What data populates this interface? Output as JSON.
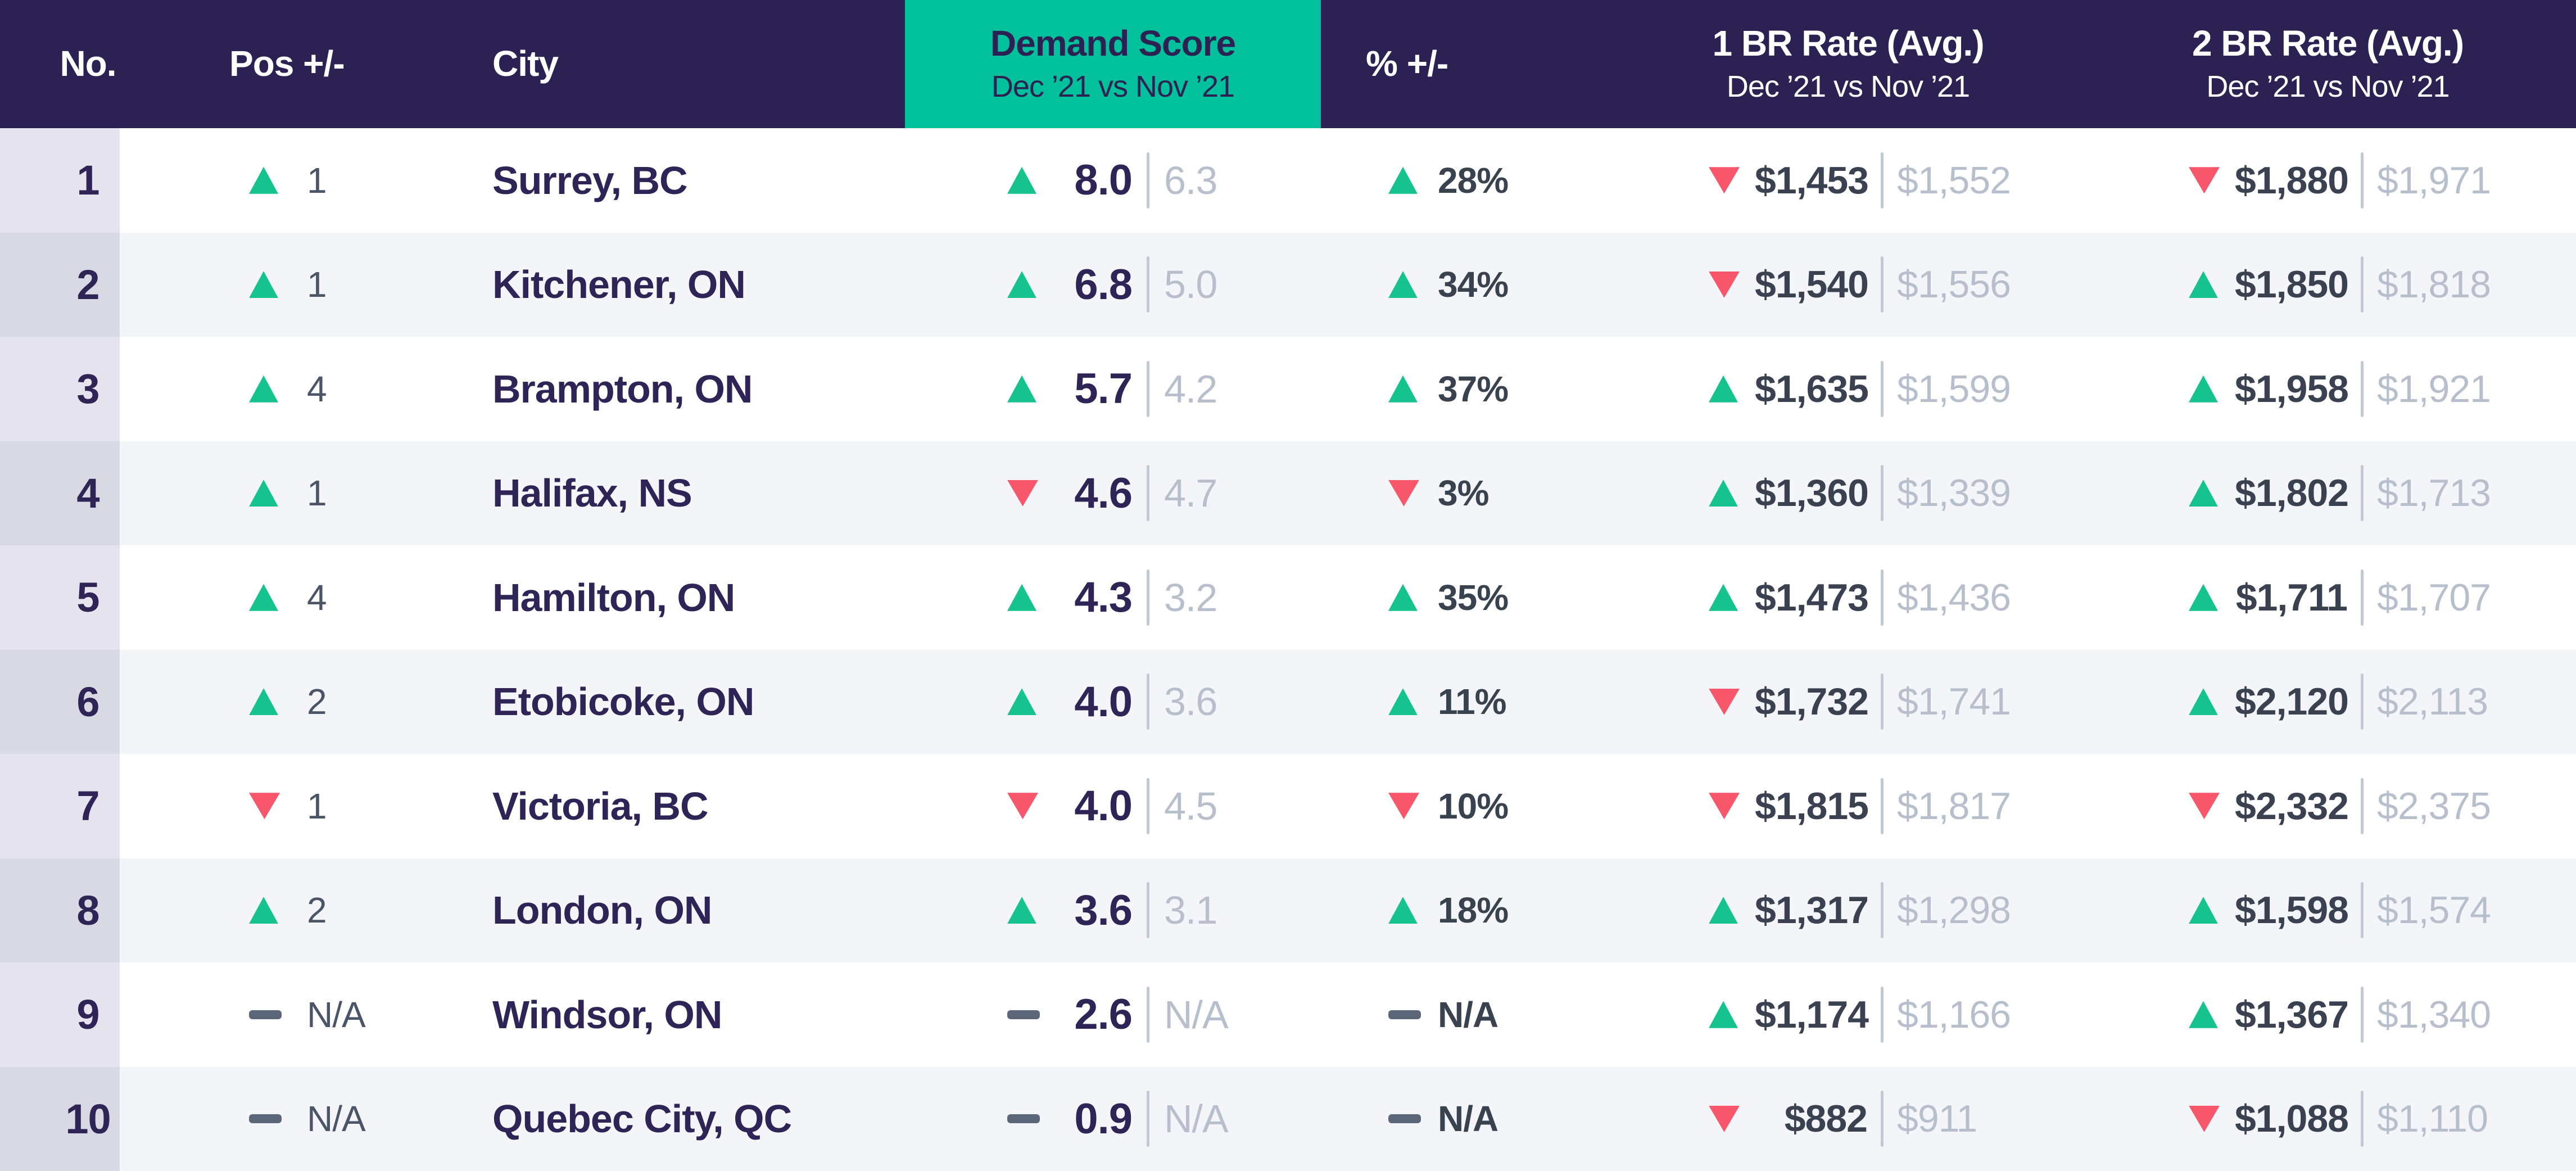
{
  "colors": {
    "header_bg": "#2B2153",
    "accent_teal": "#00C19B",
    "up_green": "#16C28E",
    "down_red": "#F8566B",
    "neutral_dash": "#5B6678",
    "primary_text": "#2F2456",
    "muted_text": "#B7BFCD",
    "row_alt_bg": "#F4F5F9",
    "rank_col_bg_odd": "#E5E4EE",
    "rank_col_bg_even": "#D9D9E4"
  },
  "icons": {
    "up": "up-triangle-icon",
    "down": "down-triangle-icon",
    "na": "dash-icon"
  },
  "chart_data": {
    "type": "table",
    "columns": [
      {
        "key": "no",
        "label": "No."
      },
      {
        "key": "pos",
        "label": "Pos +/-"
      },
      {
        "key": "city",
        "label": "City"
      },
      {
        "key": "demand",
        "label": "Demand Score",
        "sublabel": "Dec ’21 vs Nov ’21"
      },
      {
        "key": "pct",
        "label": "% +/-"
      },
      {
        "key": "br1",
        "label": "1 BR Rate (Avg.)",
        "sublabel": "Dec ’21 vs Nov ’21"
      },
      {
        "key": "br2",
        "label": "2 BR Rate (Avg.)",
        "sublabel": "Dec ’21 vs Nov ’21"
      }
    ],
    "rows": [
      {
        "no": "1",
        "pos": {
          "dir": "up",
          "value": "1"
        },
        "city": "Surrey, BC",
        "demand": {
          "dir": "up",
          "current": "8.0",
          "previous": "6.3"
        },
        "pct": {
          "dir": "up",
          "value": "28%"
        },
        "br1": {
          "dir": "down",
          "current": "$1,453",
          "previous": "$1,552"
        },
        "br2": {
          "dir": "down",
          "current": "$1,880",
          "previous": "$1,971"
        }
      },
      {
        "no": "2",
        "pos": {
          "dir": "up",
          "value": "1"
        },
        "city": "Kitchener, ON",
        "demand": {
          "dir": "up",
          "current": "6.8",
          "previous": "5.0"
        },
        "pct": {
          "dir": "up",
          "value": "34%"
        },
        "br1": {
          "dir": "down",
          "current": "$1,540",
          "previous": "$1,556"
        },
        "br2": {
          "dir": "up",
          "current": "$1,850",
          "previous": "$1,818"
        }
      },
      {
        "no": "3",
        "pos": {
          "dir": "up",
          "value": "4"
        },
        "city": "Brampton, ON",
        "demand": {
          "dir": "up",
          "current": "5.7",
          "previous": "4.2"
        },
        "pct": {
          "dir": "up",
          "value": "37%"
        },
        "br1": {
          "dir": "up",
          "current": "$1,635",
          "previous": "$1,599"
        },
        "br2": {
          "dir": "up",
          "current": "$1,958",
          "previous": "$1,921"
        }
      },
      {
        "no": "4",
        "pos": {
          "dir": "up",
          "value": "1"
        },
        "city": "Halifax, NS",
        "demand": {
          "dir": "down",
          "current": "4.6",
          "previous": "4.7"
        },
        "pct": {
          "dir": "down",
          "value": "3%"
        },
        "br1": {
          "dir": "up",
          "current": "$1,360",
          "previous": "$1,339"
        },
        "br2": {
          "dir": "up",
          "current": "$1,802",
          "previous": "$1,713"
        }
      },
      {
        "no": "5",
        "pos": {
          "dir": "up",
          "value": "4"
        },
        "city": "Hamilton, ON",
        "demand": {
          "dir": "up",
          "current": "4.3",
          "previous": "3.2"
        },
        "pct": {
          "dir": "up",
          "value": "35%"
        },
        "br1": {
          "dir": "up",
          "current": "$1,473",
          "previous": "$1,436"
        },
        "br2": {
          "dir": "up",
          "current": "$1,711",
          "previous": "$1,707"
        }
      },
      {
        "no": "6",
        "pos": {
          "dir": "up",
          "value": "2"
        },
        "city": "Etobicoke, ON",
        "demand": {
          "dir": "up",
          "current": "4.0",
          "previous": "3.6"
        },
        "pct": {
          "dir": "up",
          "value": "11%"
        },
        "br1": {
          "dir": "down",
          "current": "$1,732",
          "previous": "$1,741"
        },
        "br2": {
          "dir": "up",
          "current": "$2,120",
          "previous": "$2,113"
        }
      },
      {
        "no": "7",
        "pos": {
          "dir": "down",
          "value": "1"
        },
        "city": "Victoria, BC",
        "demand": {
          "dir": "down",
          "current": "4.0",
          "previous": "4.5"
        },
        "pct": {
          "dir": "down",
          "value": "10%"
        },
        "br1": {
          "dir": "down",
          "current": "$1,815",
          "previous": "$1,817"
        },
        "br2": {
          "dir": "down",
          "current": "$2,332",
          "previous": "$2,375"
        }
      },
      {
        "no": "8",
        "pos": {
          "dir": "up",
          "value": "2"
        },
        "city": "London, ON",
        "demand": {
          "dir": "up",
          "current": "3.6",
          "previous": "3.1"
        },
        "pct": {
          "dir": "up",
          "value": "18%"
        },
        "br1": {
          "dir": "up",
          "current": "$1,317",
          "previous": "$1,298"
        },
        "br2": {
          "dir": "up",
          "current": "$1,598",
          "previous": "$1,574"
        }
      },
      {
        "no": "9",
        "pos": {
          "dir": "na",
          "value": "N/A"
        },
        "city": "Windsor, ON",
        "demand": {
          "dir": "na",
          "current": "2.6",
          "previous": "N/A"
        },
        "pct": {
          "dir": "na",
          "value": "N/A"
        },
        "br1": {
          "dir": "up",
          "current": "$1,174",
          "previous": "$1,166"
        },
        "br2": {
          "dir": "up",
          "current": "$1,367",
          "previous": "$1,340"
        }
      },
      {
        "no": "10",
        "pos": {
          "dir": "na",
          "value": "N/A"
        },
        "city": "Quebec City, QC",
        "demand": {
          "dir": "na",
          "current": "0.9",
          "previous": "N/A"
        },
        "pct": {
          "dir": "na",
          "value": "N/A"
        },
        "br1": {
          "dir": "down",
          "current": "$882",
          "previous": "$911"
        },
        "br2": {
          "dir": "down",
          "current": "$1,088",
          "previous": "$1,110"
        }
      }
    ]
  }
}
